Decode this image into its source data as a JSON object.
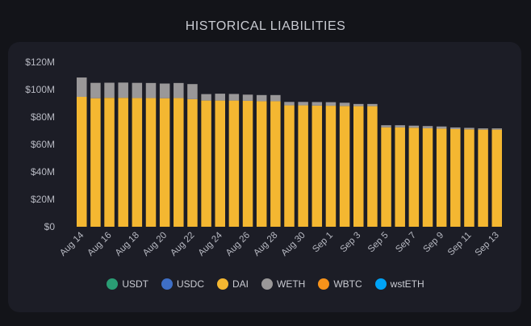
{
  "title": "HISTORICAL LIABILITIES",
  "chart_data": {
    "type": "bar",
    "stacked": true,
    "title": "HISTORICAL LIABILITIES",
    "ylim": [
      0,
      120
    ],
    "yticks": [
      "$0",
      "$20M",
      "$40M",
      "$60M",
      "$80M",
      "$100M",
      "$120M"
    ],
    "grid": false,
    "legend_position": "bottom",
    "categories": [
      "Aug 14",
      "Aug 15",
      "Aug 16",
      "Aug 17",
      "Aug 18",
      "Aug 19",
      "Aug 20",
      "Aug 21",
      "Aug 22",
      "Aug 23",
      "Aug 24",
      "Aug 25",
      "Aug 26",
      "Aug 27",
      "Aug 28",
      "Aug 29",
      "Aug 30",
      "Aug 31",
      "Sep 1",
      "Sep 2",
      "Sep 3",
      "Sep 4",
      "Sep 5",
      "Sep 6",
      "Sep 7",
      "Sep 8",
      "Sep 9",
      "Sep 10",
      "Sep 11",
      "Sep 12",
      "Sep 13"
    ],
    "xtick_labels": [
      "Aug 14",
      "Aug 16",
      "Aug 18",
      "Aug 20",
      "Aug 22",
      "Aug 24",
      "Aug 26",
      "Aug 28",
      "Aug 30",
      "Sep 1",
      "Sep 3",
      "Sep 5",
      "Sep 7",
      "Sep 9",
      "Sep 11",
      "Sep 13"
    ],
    "series": [
      {
        "name": "USDT",
        "color": "#2a9d74",
        "values": [
          0,
          0,
          0,
          0,
          0,
          0,
          0,
          0,
          0,
          0,
          0,
          0,
          0,
          0,
          0,
          0,
          0,
          0,
          0,
          0,
          0,
          0,
          0,
          0,
          0,
          0,
          0,
          0,
          0,
          0,
          0
        ]
      },
      {
        "name": "USDC",
        "color": "#3e6fc6",
        "values": [
          0,
          0,
          0,
          0,
          0,
          0,
          0,
          0,
          0,
          0,
          0,
          0,
          0,
          0,
          0,
          0,
          0,
          0,
          0,
          0,
          0,
          0,
          0,
          0,
          0,
          0,
          0,
          0,
          0,
          0,
          0
        ]
      },
      {
        "name": "DAI",
        "color": "#f4b731",
        "values": [
          94.7,
          93.7,
          94,
          94,
          93.8,
          93.8,
          93.7,
          93.8,
          93,
          92,
          92,
          92,
          91.8,
          91.5,
          91.5,
          88.5,
          88.5,
          88.3,
          88.2,
          88,
          87.9,
          87.9,
          72.5,
          72.4,
          72.2,
          71.8,
          71.5,
          71.2,
          71,
          70.8,
          70.8
        ]
      },
      {
        "name": "WETH",
        "color": "#9a9899",
        "values": [
          14.1,
          11.2,
          11,
          11.1,
          11.1,
          11,
          10.7,
          11,
          11,
          4.7,
          5,
          4.8,
          4.5,
          4.5,
          4.5,
          2.5,
          2.5,
          2.6,
          2.6,
          2.4,
          1.6,
          1.6,
          1.5,
          1.6,
          1.5,
          1.6,
          1.6,
          1.2,
          1.1,
          0.9,
          0.9
        ]
      },
      {
        "name": "WBTC",
        "color": "#f7931a",
        "values": [
          0,
          0,
          0,
          0,
          0,
          0,
          0,
          0,
          0,
          0,
          0,
          0,
          0,
          0,
          0,
          0,
          0,
          0,
          0,
          0,
          0,
          0,
          0,
          0,
          0,
          0,
          0,
          0,
          0,
          0,
          0
        ]
      },
      {
        "name": "wstETH",
        "color": "#00a3f5",
        "values": [
          0,
          0,
          0,
          0,
          0,
          0,
          0,
          0,
          0,
          0,
          0,
          0,
          0,
          0,
          0,
          0,
          0,
          0,
          0,
          0,
          0,
          0,
          0,
          0,
          0,
          0,
          0,
          0,
          0,
          0,
          0
        ]
      }
    ]
  }
}
